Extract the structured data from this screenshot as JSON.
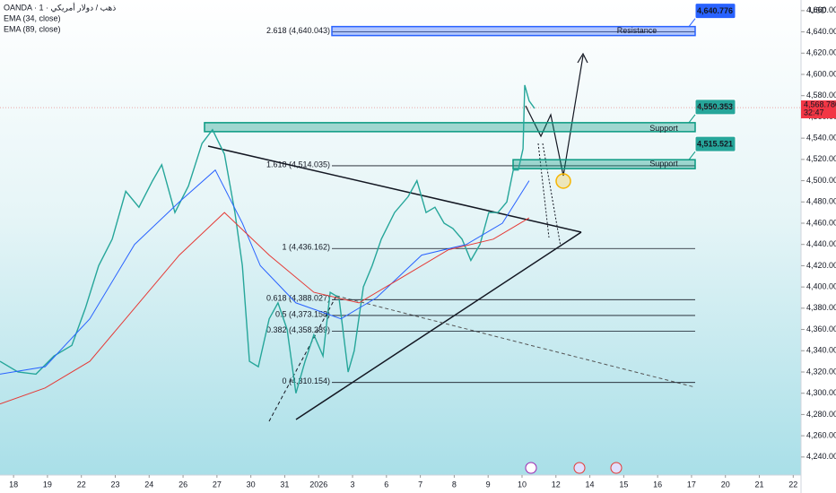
{
  "chart_data": {
    "type": "line",
    "header": [
      "OANDA · 1 · ذهب / دولار أمريكي",
      "EMA (34, close)",
      "EMA (89, close)"
    ],
    "currency": "USD",
    "xlim": [
      -0.4,
      23.23
    ],
    "xticks": [
      {
        "value": 0,
        "label": "18"
      },
      {
        "value": 1,
        "label": "19"
      },
      {
        "value": 2,
        "label": "22"
      },
      {
        "value": 3,
        "label": "23"
      },
      {
        "value": 4,
        "label": "24"
      },
      {
        "value": 5,
        "label": "26"
      },
      {
        "value": 6,
        "label": "27"
      },
      {
        "value": 7,
        "label": "30"
      },
      {
        "value": 8,
        "label": "31"
      },
      {
        "value": 9,
        "label": "2026"
      },
      {
        "value": 10,
        "label": "3"
      },
      {
        "value": 11,
        "label": "6"
      },
      {
        "value": 12,
        "label": "7"
      },
      {
        "value": 13,
        "label": "8"
      },
      {
        "value": 14,
        "label": "9"
      },
      {
        "value": 15,
        "label": "10"
      },
      {
        "value": 16,
        "label": "12"
      },
      {
        "value": 17,
        "label": "14"
      },
      {
        "value": 18,
        "label": "15"
      },
      {
        "value": 19,
        "label": "16"
      },
      {
        "value": 20,
        "label": "17"
      },
      {
        "value": 21,
        "label": "20"
      },
      {
        "value": 22,
        "label": "21"
      },
      {
        "value": 23,
        "label": "22"
      }
    ],
    "ylim": [
      4223,
      4670
    ],
    "yticks": [
      {
        "value": 4240,
        "label": "4,240.000"
      },
      {
        "value": 4260,
        "label": "4,260.000"
      },
      {
        "value": 4280,
        "label": "4,280.000"
      },
      {
        "value": 4300,
        "label": "4,300.000"
      },
      {
        "value": 4320,
        "label": "4,320.000"
      },
      {
        "value": 4340,
        "label": "4,340.000"
      },
      {
        "value": 4360,
        "label": "4,360.000"
      },
      {
        "value": 4380,
        "label": "4,380.000"
      },
      {
        "value": 4400,
        "label": "4,400.000"
      },
      {
        "value": 4420,
        "label": "4,420.000"
      },
      {
        "value": 4440,
        "label": "4,440.000"
      },
      {
        "value": 4460,
        "label": "4,460.000"
      },
      {
        "value": 4480,
        "label": "4,480.000"
      },
      {
        "value": 4500,
        "label": "4,500.000"
      },
      {
        "value": 4520,
        "label": "4,520.000"
      },
      {
        "value": 4540,
        "label": "4,540.000"
      },
      {
        "value": 4560,
        "label": "4,560.000"
      },
      {
        "value": 4580,
        "label": "4,580.000"
      },
      {
        "value": 4600,
        "label": "4,600.000"
      },
      {
        "value": 4620,
        "label": "4,620.000"
      },
      {
        "value": 4640,
        "label": "4,640.000"
      },
      {
        "value": 4660,
        "label": "4,660.000"
      }
    ],
    "series": [
      {
        "name": "Price",
        "color": "#26a69a",
        "x": [
          -0.4,
          0.13,
          0.66,
          1.19,
          1.72,
          2.12,
          2.51,
          2.91,
          3.31,
          3.7,
          4.1,
          4.37,
          4.76,
          5.16,
          5.56,
          5.87,
          6.22,
          6.53,
          6.75,
          6.96,
          7.22,
          7.54,
          7.8,
          8.07,
          8.33,
          8.6,
          8.86,
          9.13,
          9.34,
          9.6,
          9.87,
          10.05,
          10.32,
          10.58,
          10.85,
          11.24,
          11.64,
          11.9,
          12.17,
          12.43,
          12.7,
          12.96,
          13.23,
          13.49,
          13.76,
          14.02,
          14.29,
          14.55,
          14.74,
          14.89,
          15.03,
          15.08,
          15.21,
          15.37
        ],
        "values": [
          4330,
          4320,
          4318,
          4335,
          4345,
          4380,
          4420,
          4445,
          4490,
          4475,
          4500,
          4515,
          4470,
          4495,
          4535,
          4548,
          4525,
          4470,
          4420,
          4330,
          4325,
          4370,
          4385,
          4360,
          4300,
          4330,
          4355,
          4335,
          4395,
          4390,
          4320,
          4340,
          4400,
          4420,
          4445,
          4470,
          4485,
          4500,
          4470,
          4475,
          4460,
          4455,
          4445,
          4425,
          4440,
          4470,
          4470,
          4480,
          4510,
          4510,
          4530,
          4590,
          4575,
          4568
        ]
      },
      {
        "name": "EMA (34, close)",
        "color": "#2962ff",
        "x": [
          -0.4,
          0.93,
          2.25,
          3.57,
          4.89,
          5.95,
          6.75,
          7.28,
          8.33,
          9.66,
          10.71,
          12.04,
          13.36,
          14.42,
          15.21
        ],
        "values": [
          4318,
          4325,
          4370,
          4440,
          4480,
          4510,
          4460,
          4420,
          4385,
          4370,
          4390,
          4430,
          4440,
          4460,
          4500
        ]
      },
      {
        "name": "EMA (89, close)",
        "color": "#e53935",
        "x": [
          -0.4,
          0.93,
          2.25,
          3.57,
          4.89,
          6.22,
          7.54,
          8.86,
          10.19,
          11.51,
          12.83,
          14.15,
          15.21
        ],
        "values": [
          4290,
          4305,
          4330,
          4380,
          4430,
          4470,
          4430,
          4395,
          4385,
          4410,
          4435,
          4445,
          4465
        ]
      }
    ],
    "fib_levels": [
      {
        "value": 4640.043,
        "label": "2.618 (4,640.043)"
      },
      {
        "value": 4514.035,
        "label": "1.618 (4,514.035)"
      },
      {
        "value": 4436.162,
        "label": "1 (4,436.162)"
      },
      {
        "value": 4388.027,
        "label": "0.618 (4,388.027)"
      },
      {
        "value": 4373.158,
        "label": "0.5 (4,373.158)"
      },
      {
        "value": 4358.289,
        "label": "0.382 (4,358.289)"
      },
      {
        "value": 4310.154,
        "label": "0 (4,310.154)"
      }
    ],
    "zones": [
      {
        "label": "Resistance",
        "price": 4640.776,
        "price_label": "4,640.776",
        "color": "#2962ff"
      },
      {
        "label": "Support",
        "price": 4550.353,
        "price_label": "4,550.353",
        "color": "#089981"
      },
      {
        "label": "Support",
        "price": 4515.521,
        "price_label": "4,515.521",
        "color": "#089981"
      }
    ],
    "last_price": {
      "value": 4568.78,
      "label": "4,568.780",
      "countdown": "32:47"
    }
  }
}
